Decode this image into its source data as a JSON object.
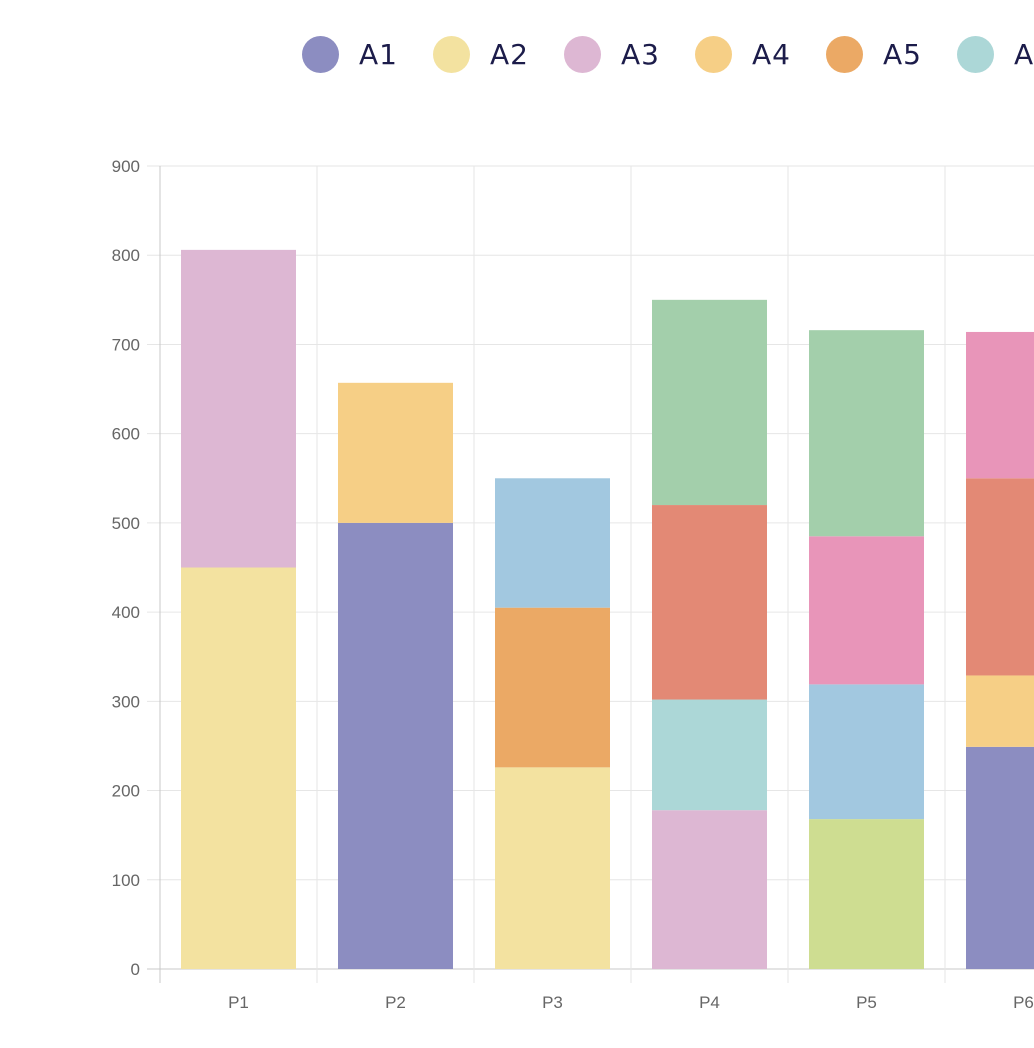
{
  "chart_data": {
    "type": "bar",
    "stacked": true,
    "categories": [
      "P1",
      "P2",
      "P3",
      "P4",
      "P5",
      "P6"
    ],
    "ylim": [
      0,
      900
    ],
    "yticks": [
      0,
      100,
      200,
      300,
      400,
      500,
      600,
      700,
      800,
      900
    ],
    "grid": true,
    "legend_placement": "top",
    "legend": [
      {
        "label": "A1",
        "color": "#8c8dc1"
      },
      {
        "label": "A2",
        "color": "#f3e2a0"
      },
      {
        "label": "A3",
        "color": "#ddb7d3"
      },
      {
        "label": "A4",
        "color": "#f6cf86"
      },
      {
        "label": "A5",
        "color": "#eba965"
      },
      {
        "label": "A",
        "color": "#acd7d7"
      }
    ],
    "stacks": [
      {
        "category": "P1",
        "segments": [
          {
            "value": 450,
            "color": "#f3e2a0"
          },
          {
            "value": 356,
            "color": "#ddb7d3"
          }
        ]
      },
      {
        "category": "P2",
        "segments": [
          {
            "value": 500,
            "color": "#8c8dc1"
          },
          {
            "value": 157,
            "color": "#f6cf86"
          }
        ]
      },
      {
        "category": "P3",
        "segments": [
          {
            "value": 226,
            "color": "#f3e2a0"
          },
          {
            "value": 179,
            "color": "#eba965"
          },
          {
            "value": 145,
            "color": "#a2c8e0"
          }
        ]
      },
      {
        "category": "P4",
        "segments": [
          {
            "value": 178,
            "color": "#ddb7d3"
          },
          {
            "value": 124,
            "color": "#acd7d7"
          },
          {
            "value": 218,
            "color": "#e38975"
          },
          {
            "value": 230,
            "color": "#a3cfab"
          }
        ]
      },
      {
        "category": "P5",
        "segments": [
          {
            "value": 168,
            "color": "#cedd91"
          },
          {
            "value": 151,
            "color": "#a2c8e0"
          },
          {
            "value": 166,
            "color": "#e895b9"
          },
          {
            "value": 231,
            "color": "#a3cfab"
          }
        ]
      },
      {
        "category": "P6",
        "segments": [
          {
            "value": 249,
            "color": "#8c8dc1"
          },
          {
            "value": 80,
            "color": "#f6cf86"
          },
          {
            "value": 221,
            "color": "#e38975"
          },
          {
            "value": 164,
            "color": "#e895b9"
          }
        ]
      }
    ]
  }
}
